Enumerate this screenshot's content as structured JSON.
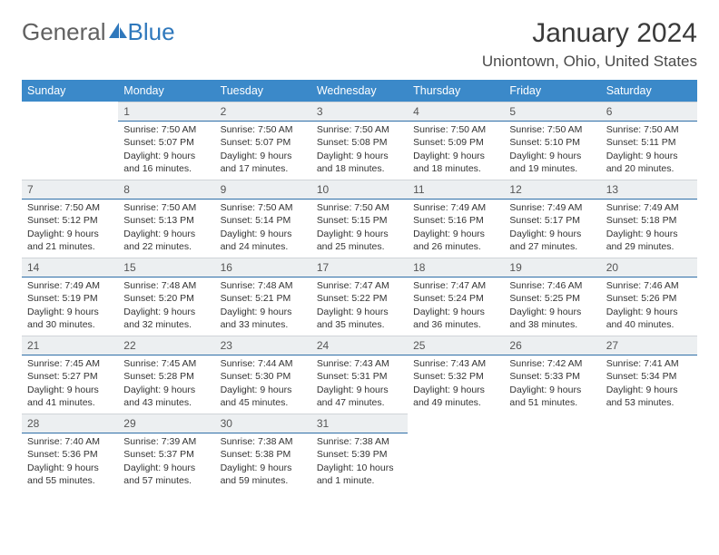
{
  "brand": {
    "part1": "General",
    "part2": "Blue"
  },
  "title": "January 2024",
  "location": "Uniontown, Ohio, United States",
  "colors": {
    "header_bg": "#3b89c9",
    "header_text": "#ffffff",
    "daynum_bg": "#eceff1",
    "daynum_border": "#2f6fa8",
    "body_text": "#333333",
    "brand_gray": "#616161",
    "brand_blue": "#2f78bc"
  },
  "weekdays": [
    "Sunday",
    "Monday",
    "Tuesday",
    "Wednesday",
    "Thursday",
    "Friday",
    "Saturday"
  ],
  "weeks": [
    [
      null,
      {
        "n": "1",
        "sr": "7:50 AM",
        "ss": "5:07 PM",
        "dl": "9 hours and 16 minutes."
      },
      {
        "n": "2",
        "sr": "7:50 AM",
        "ss": "5:07 PM",
        "dl": "9 hours and 17 minutes."
      },
      {
        "n": "3",
        "sr": "7:50 AM",
        "ss": "5:08 PM",
        "dl": "9 hours and 18 minutes."
      },
      {
        "n": "4",
        "sr": "7:50 AM",
        "ss": "5:09 PM",
        "dl": "9 hours and 18 minutes."
      },
      {
        "n": "5",
        "sr": "7:50 AM",
        "ss": "5:10 PM",
        "dl": "9 hours and 19 minutes."
      },
      {
        "n": "6",
        "sr": "7:50 AM",
        "ss": "5:11 PM",
        "dl": "9 hours and 20 minutes."
      }
    ],
    [
      {
        "n": "7",
        "sr": "7:50 AM",
        "ss": "5:12 PM",
        "dl": "9 hours and 21 minutes."
      },
      {
        "n": "8",
        "sr": "7:50 AM",
        "ss": "5:13 PM",
        "dl": "9 hours and 22 minutes."
      },
      {
        "n": "9",
        "sr": "7:50 AM",
        "ss": "5:14 PM",
        "dl": "9 hours and 24 minutes."
      },
      {
        "n": "10",
        "sr": "7:50 AM",
        "ss": "5:15 PM",
        "dl": "9 hours and 25 minutes."
      },
      {
        "n": "11",
        "sr": "7:49 AM",
        "ss": "5:16 PM",
        "dl": "9 hours and 26 minutes."
      },
      {
        "n": "12",
        "sr": "7:49 AM",
        "ss": "5:17 PM",
        "dl": "9 hours and 27 minutes."
      },
      {
        "n": "13",
        "sr": "7:49 AM",
        "ss": "5:18 PM",
        "dl": "9 hours and 29 minutes."
      }
    ],
    [
      {
        "n": "14",
        "sr": "7:49 AM",
        "ss": "5:19 PM",
        "dl": "9 hours and 30 minutes."
      },
      {
        "n": "15",
        "sr": "7:48 AM",
        "ss": "5:20 PM",
        "dl": "9 hours and 32 minutes."
      },
      {
        "n": "16",
        "sr": "7:48 AM",
        "ss": "5:21 PM",
        "dl": "9 hours and 33 minutes."
      },
      {
        "n": "17",
        "sr": "7:47 AM",
        "ss": "5:22 PM",
        "dl": "9 hours and 35 minutes."
      },
      {
        "n": "18",
        "sr": "7:47 AM",
        "ss": "5:24 PM",
        "dl": "9 hours and 36 minutes."
      },
      {
        "n": "19",
        "sr": "7:46 AM",
        "ss": "5:25 PM",
        "dl": "9 hours and 38 minutes."
      },
      {
        "n": "20",
        "sr": "7:46 AM",
        "ss": "5:26 PM",
        "dl": "9 hours and 40 minutes."
      }
    ],
    [
      {
        "n": "21",
        "sr": "7:45 AM",
        "ss": "5:27 PM",
        "dl": "9 hours and 41 minutes."
      },
      {
        "n": "22",
        "sr": "7:45 AM",
        "ss": "5:28 PM",
        "dl": "9 hours and 43 minutes."
      },
      {
        "n": "23",
        "sr": "7:44 AM",
        "ss": "5:30 PM",
        "dl": "9 hours and 45 minutes."
      },
      {
        "n": "24",
        "sr": "7:43 AM",
        "ss": "5:31 PM",
        "dl": "9 hours and 47 minutes."
      },
      {
        "n": "25",
        "sr": "7:43 AM",
        "ss": "5:32 PM",
        "dl": "9 hours and 49 minutes."
      },
      {
        "n": "26",
        "sr": "7:42 AM",
        "ss": "5:33 PM",
        "dl": "9 hours and 51 minutes."
      },
      {
        "n": "27",
        "sr": "7:41 AM",
        "ss": "5:34 PM",
        "dl": "9 hours and 53 minutes."
      }
    ],
    [
      {
        "n": "28",
        "sr": "7:40 AM",
        "ss": "5:36 PM",
        "dl": "9 hours and 55 minutes."
      },
      {
        "n": "29",
        "sr": "7:39 AM",
        "ss": "5:37 PM",
        "dl": "9 hours and 57 minutes."
      },
      {
        "n": "30",
        "sr": "7:38 AM",
        "ss": "5:38 PM",
        "dl": "9 hours and 59 minutes."
      },
      {
        "n": "31",
        "sr": "7:38 AM",
        "ss": "5:39 PM",
        "dl": "10 hours and 1 minute."
      },
      null,
      null,
      null
    ]
  ],
  "labels": {
    "sunrise": "Sunrise:",
    "sunset": "Sunset:",
    "daylight": "Daylight:"
  }
}
